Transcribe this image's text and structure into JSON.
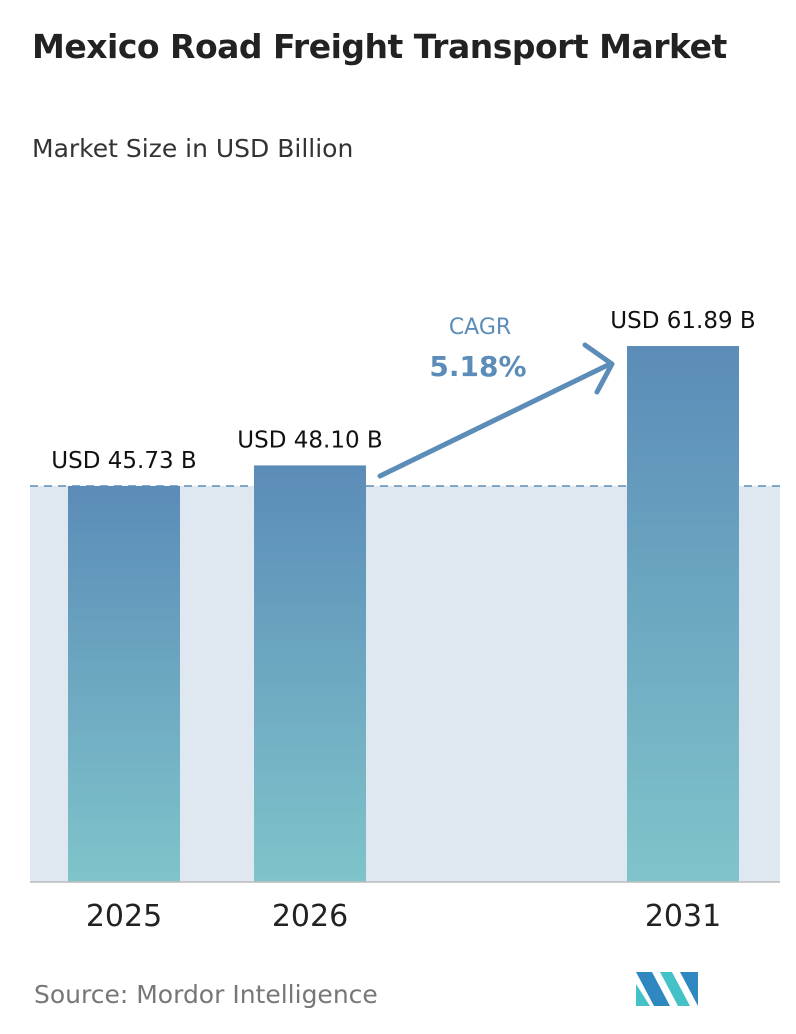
{
  "title": "Mexico Road Freight Transport Market",
  "subtitle": "Market Size in USD Billion",
  "source": "Source:  Mordor Intelligence",
  "logo_text": "Mordor Intelligence",
  "colors": {
    "bar_top": "#5b8cb8",
    "bar_bottom": "#7fc4ca",
    "band": "#dfe8f1",
    "accent": "#5b8db8"
  },
  "chart_data": {
    "type": "bar",
    "categories": [
      "2025",
      "2026",
      "2031"
    ],
    "values": [
      45.73,
      48.1,
      61.89
    ],
    "data_labels": [
      "USD 45.73 B",
      "USD 48.10 B",
      "USD 61.89 B"
    ],
    "annotation": {
      "label": "CAGR",
      "value": "5.18%"
    },
    "xlabel": "",
    "ylabel": "",
    "grid": false,
    "ylim": [
      0,
      61.89
    ]
  }
}
